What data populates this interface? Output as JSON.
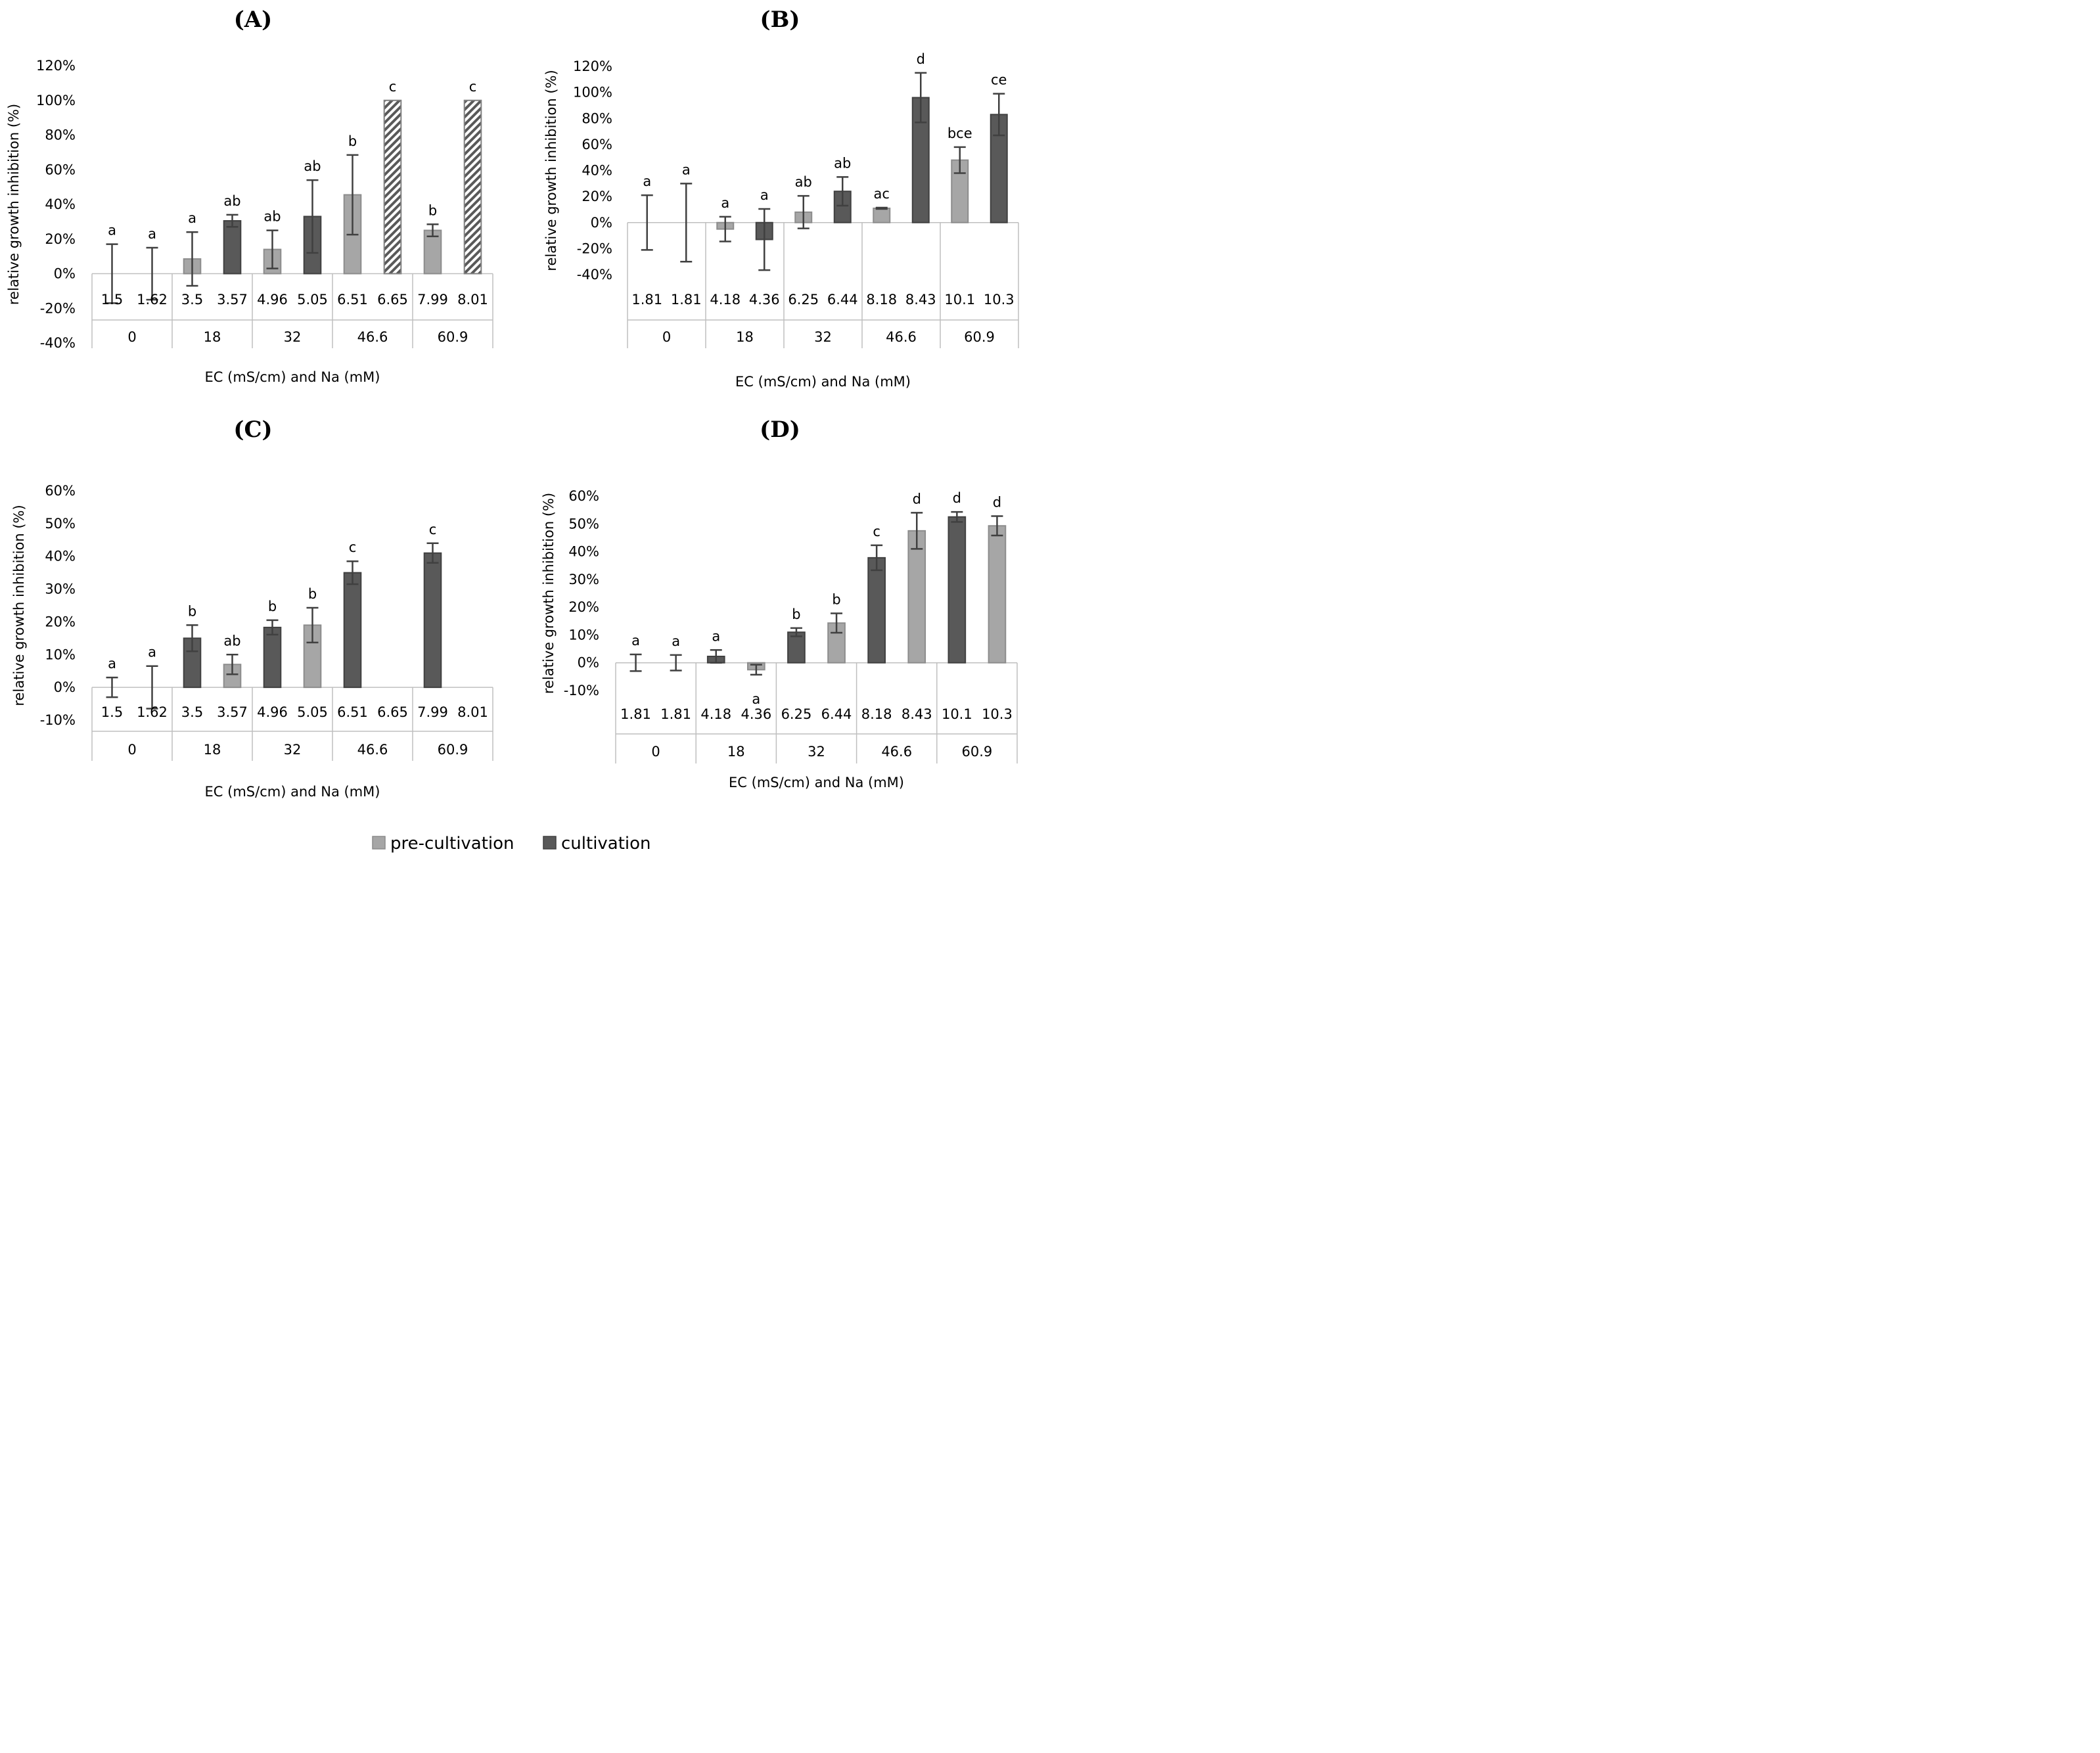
{
  "colors": {
    "pre": "#a6a6a6",
    "cult": "#595959",
    "outline_pre": "#8c8c8c",
    "outline_cult": "#404040",
    "error": "#404040",
    "axis": "#bfbfbf"
  },
  "legend": {
    "items": [
      {
        "label": "pre-cultivation",
        "key": "pre"
      },
      {
        "label": "cultivation",
        "key": "cult"
      }
    ]
  },
  "chart_data": [
    {
      "type": "bar",
      "title": "(A)",
      "ylabel": "relative growth inhibition (%)",
      "xlabel": "EC (mS/cm) and Na (mM)",
      "ylim": [
        -40,
        120
      ],
      "yticks": [
        -40,
        -20,
        0,
        20,
        40,
        60,
        80,
        100,
        120
      ],
      "yticklabels": [
        "-40%",
        "-20%",
        "0%",
        "20%",
        "40%",
        "60%",
        "80%",
        "100%",
        "120%"
      ],
      "groups": [
        "0",
        "18",
        "32",
        "46.6",
        "60.9"
      ],
      "categories": [
        "1.5",
        "1.62",
        "3.5",
        "3.57",
        "4.96",
        "5.05",
        "6.51",
        "6.65",
        "7.99",
        "8.01"
      ],
      "bars": [
        {
          "value": 0,
          "error": 17,
          "type": "pre",
          "label": "a"
        },
        {
          "value": 0,
          "error": 15,
          "type": "cult",
          "label": "a"
        },
        {
          "value": 8.5,
          "error": 15.5,
          "type": "pre",
          "label": "a"
        },
        {
          "value": 30.5,
          "error": 3.5,
          "type": "cult",
          "label": "ab"
        },
        {
          "value": 14,
          "error": 11,
          "type": "pre",
          "label": "ab"
        },
        {
          "value": 33,
          "error": 21,
          "type": "cult",
          "label": "ab"
        },
        {
          "value": 45.5,
          "error": 23,
          "type": "pre",
          "label": "b"
        },
        {
          "value": 100,
          "error": 0,
          "type": "hatched",
          "label": "c"
        },
        {
          "value": 25,
          "error": 3.5,
          "type": "pre",
          "label": "b"
        },
        {
          "value": 100,
          "error": 0,
          "type": "hatched",
          "label": "c"
        }
      ]
    },
    {
      "type": "bar",
      "title": "(B)",
      "ylabel": "relative growth inhibition (%)",
      "xlabel": "EC (mS/cm) and Na (mM)",
      "ylim": [
        -40,
        120
      ],
      "yticks": [
        -40,
        -20,
        0,
        20,
        40,
        60,
        80,
        100,
        120
      ],
      "yticklabels": [
        "-40%",
        "-20%",
        "0%",
        "20%",
        "40%",
        "60%",
        "80%",
        "100%",
        "120%"
      ],
      "groups": [
        "0",
        "18",
        "32",
        "46.6",
        "60.9"
      ],
      "categories": [
        "1.81",
        "1.81",
        "4.18",
        "4.36",
        "6.25",
        "6.44",
        "8.18",
        "8.43",
        "10.1",
        "10.3"
      ],
      "bars": [
        {
          "value": 0,
          "error": 21,
          "type": "pre",
          "label": "a"
        },
        {
          "value": 0,
          "error": 30,
          "type": "cult",
          "label": "a"
        },
        {
          "value": -5,
          "error": 9.5,
          "type": "pre",
          "label": "a"
        },
        {
          "value": -13,
          "error": 23.5,
          "type": "cult",
          "label": "a"
        },
        {
          "value": 8,
          "error": 12.5,
          "type": "pre",
          "label": "ab"
        },
        {
          "value": 24,
          "error": 11,
          "type": "cult",
          "label": "ab"
        },
        {
          "value": 11,
          "error": 0.5,
          "type": "pre",
          "label": "ac"
        },
        {
          "value": 96,
          "error": 19,
          "type": "cult",
          "label": "d"
        },
        {
          "value": 48,
          "error": 10,
          "type": "pre",
          "label": "bce"
        },
        {
          "value": 83,
          "error": 16,
          "type": "cult",
          "label": "ce"
        }
      ]
    },
    {
      "type": "bar",
      "title": "(C)",
      "ylabel": "relative growth inhibition (%)",
      "xlabel": "EC (mS/cm) and Na (mM)",
      "ylim": [
        -10,
        60
      ],
      "yticks": [
        -10,
        0,
        10,
        20,
        30,
        40,
        50,
        60
      ],
      "yticklabels": [
        "-10%",
        "0%",
        "10%",
        "20%",
        "30%",
        "40%",
        "50%",
        "60%"
      ],
      "groups": [
        "0",
        "18",
        "32",
        "46.6",
        "60.9"
      ],
      "categories": [
        "1.5",
        "1.62",
        "3.5",
        "3.57",
        "4.96",
        "5.05",
        "6.51",
        "6.65",
        "7.99",
        "8.01"
      ],
      "bars": [
        {
          "value": 0,
          "error": 3,
          "type": "pre",
          "label": "a"
        },
        {
          "value": 0,
          "error": 6.5,
          "type": "cult",
          "label": "a"
        },
        {
          "value": 15,
          "error": 4,
          "type": "cult",
          "label": "b"
        },
        {
          "value": 7,
          "error": 3,
          "type": "pre",
          "label": "ab"
        },
        {
          "value": 18.3,
          "error": 2.2,
          "type": "cult",
          "label": "b"
        },
        {
          "value": 19,
          "error": 5.3,
          "type": "pre",
          "label": "b"
        },
        {
          "value": 35,
          "error": 3.5,
          "type": "cult",
          "label": "c"
        },
        {
          "value": null,
          "error": 0,
          "type": "none",
          "label": ""
        },
        {
          "value": 41,
          "error": 3,
          "type": "cult",
          "label": "c"
        },
        {
          "value": null,
          "error": 0,
          "type": "none",
          "label": ""
        }
      ]
    },
    {
      "type": "bar",
      "title": "(D)",
      "ylabel": "relative growth inhibition (%)",
      "xlabel": "EC (mS/cm) and Na (mM)",
      "ylim": [
        -10,
        60
      ],
      "yticks": [
        -10,
        0,
        10,
        20,
        30,
        40,
        50,
        60
      ],
      "yticklabels": [
        "-10%",
        "0%",
        "10%",
        "20%",
        "30%",
        "40%",
        "50%",
        "60%"
      ],
      "groups": [
        "0",
        "18",
        "32",
        "46.6",
        "60.9"
      ],
      "categories": [
        "1.81",
        "1.81",
        "4.18",
        "4.36",
        "6.25",
        "6.44",
        "8.18",
        "8.43",
        "10.1",
        "10.3"
      ],
      "bars": [
        {
          "value": 0,
          "error": 3,
          "type": "pre",
          "label": "a"
        },
        {
          "value": 0,
          "error": 2.8,
          "type": "cult",
          "label": "a"
        },
        {
          "value": 2.3,
          "error": 2.3,
          "type": "cult",
          "label": "a"
        },
        {
          "value": -2.5,
          "error": 1.8,
          "type": "pre",
          "label": "a"
        },
        {
          "value": 11,
          "error": 1.5,
          "type": "cult",
          "label": "b"
        },
        {
          "value": 14.3,
          "error": 3.5,
          "type": "pre",
          "label": "b"
        },
        {
          "value": 37.8,
          "error": 4.5,
          "type": "cult",
          "label": "c"
        },
        {
          "value": 47.5,
          "error": 6.5,
          "type": "pre",
          "label": "d"
        },
        {
          "value": 52.5,
          "error": 1.8,
          "type": "cult",
          "label": "d"
        },
        {
          "value": 49.3,
          "error": 3.5,
          "type": "pre",
          "label": "d"
        }
      ]
    }
  ]
}
